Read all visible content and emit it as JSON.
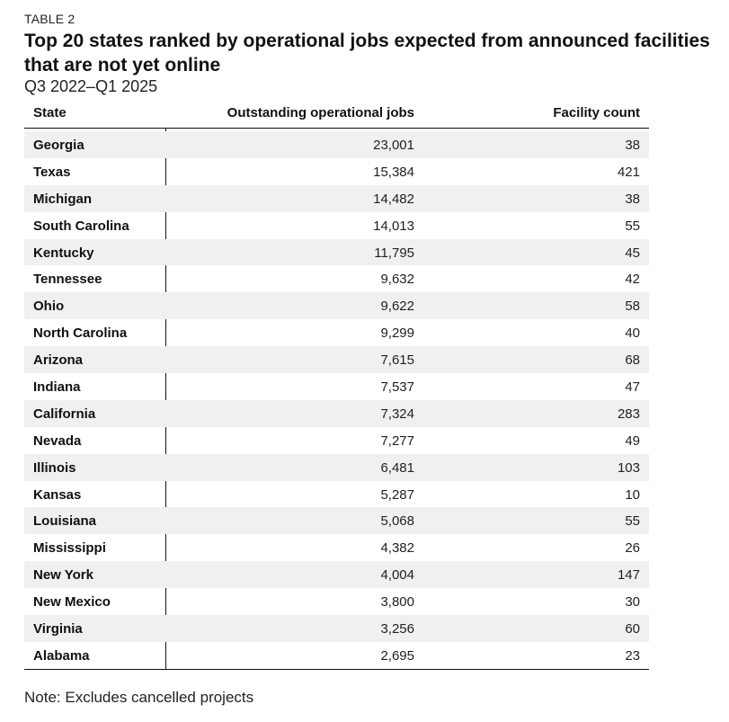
{
  "table_label": "TABLE 2",
  "title": "Top 20 states ranked by operational jobs expected from announced facilities that are not yet online",
  "subtitle": "Q3 2022–Q1 2025",
  "note": "Note: Excludes cancelled projects",
  "chart_data": {
    "type": "table",
    "title": "Top 20 states ranked by operational jobs expected from announced facilities that are not yet online",
    "subtitle": "Q3 2022–Q1 2025",
    "columns": [
      "State",
      "Outstanding operational jobs",
      "Facility count"
    ],
    "rows": [
      {
        "state": "Georgia",
        "jobs": "23,001",
        "count": "38"
      },
      {
        "state": "Texas",
        "jobs": "15,384",
        "count": "421"
      },
      {
        "state": "Michigan",
        "jobs": "14,482",
        "count": "38"
      },
      {
        "state": "South Carolina",
        "jobs": "14,013",
        "count": "55"
      },
      {
        "state": "Kentucky",
        "jobs": "11,795",
        "count": "45"
      },
      {
        "state": "Tennessee",
        "jobs": "9,632",
        "count": "42"
      },
      {
        "state": "Ohio",
        "jobs": "9,622",
        "count": "58"
      },
      {
        "state": "North Carolina",
        "jobs": "9,299",
        "count": "40"
      },
      {
        "state": "Arizona",
        "jobs": "7,615",
        "count": "68"
      },
      {
        "state": "Indiana",
        "jobs": "7,537",
        "count": "47"
      },
      {
        "state": "California",
        "jobs": "7,324",
        "count": "283"
      },
      {
        "state": "Nevada",
        "jobs": "7,277",
        "count": "49"
      },
      {
        "state": "Illinois",
        "jobs": "6,481",
        "count": "103"
      },
      {
        "state": "Kansas",
        "jobs": "5,287",
        "count": "10"
      },
      {
        "state": "Louisiana",
        "jobs": "5,068",
        "count": "55"
      },
      {
        "state": "Mississippi",
        "jobs": "4,382",
        "count": "26"
      },
      {
        "state": "New York",
        "jobs": "4,004",
        "count": "147"
      },
      {
        "state": "New Mexico",
        "jobs": "3,800",
        "count": "30"
      },
      {
        "state": "Virginia",
        "jobs": "3,256",
        "count": "60"
      },
      {
        "state": "Alabama",
        "jobs": "2,695",
        "count": "23"
      }
    ]
  }
}
